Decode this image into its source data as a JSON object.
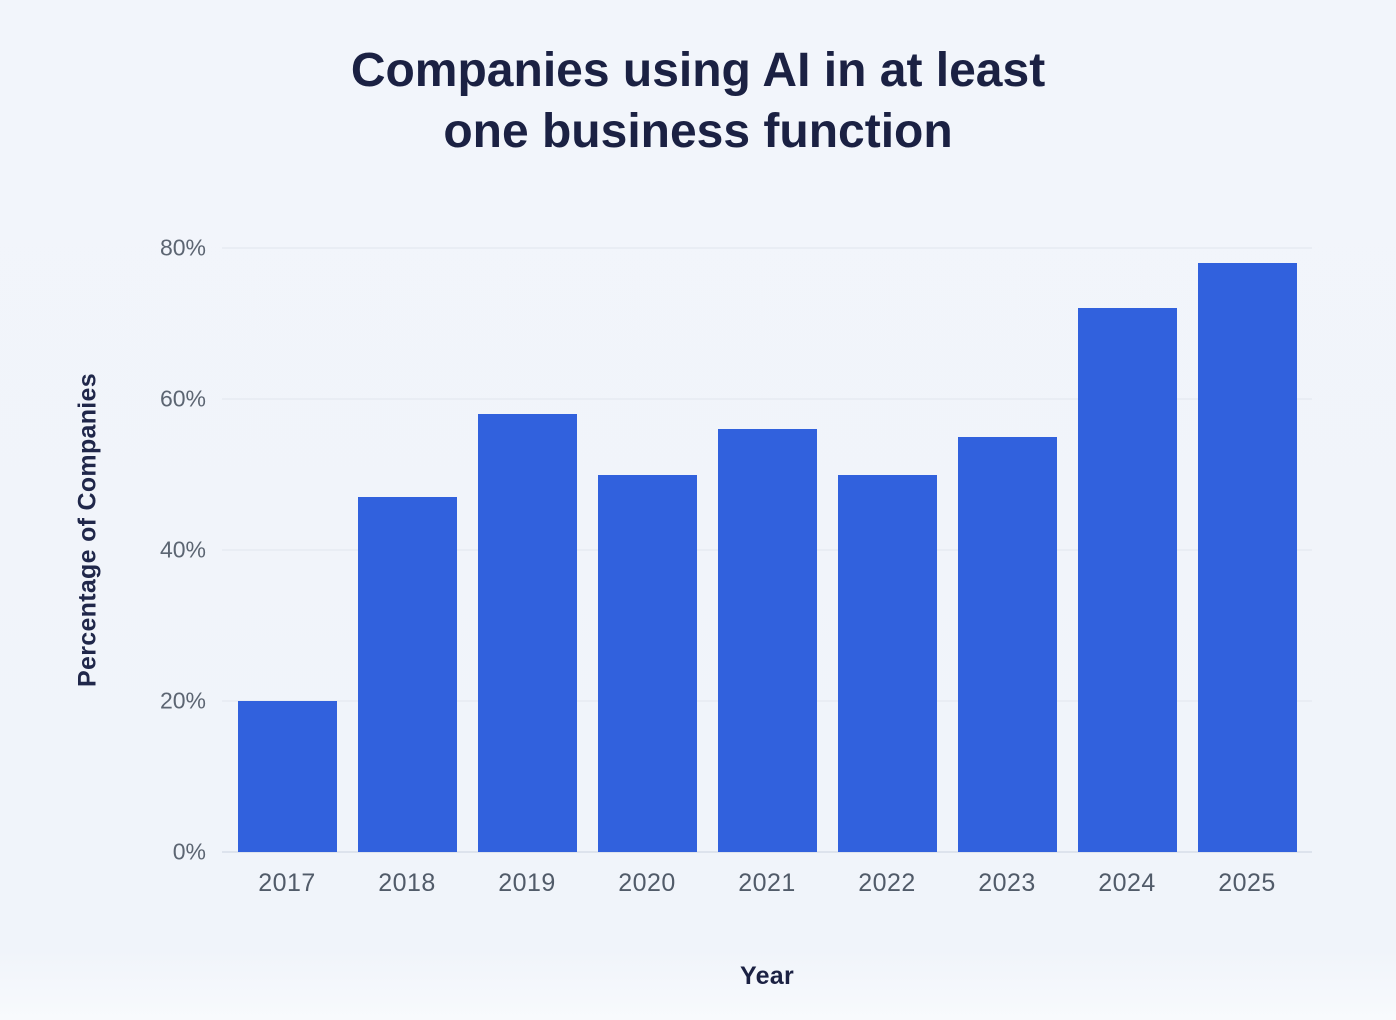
{
  "title": {
    "line1": "Companies using AI in at least",
    "line2": "one business function"
  },
  "chart_data": {
    "type": "bar",
    "title": "Companies using AI in at least one business function",
    "categories": [
      "2017",
      "2018",
      "2019",
      "2020",
      "2021",
      "2022",
      "2023",
      "2024",
      "2025"
    ],
    "values": [
      20,
      47,
      58,
      50,
      56,
      50,
      55,
      72,
      78
    ],
    "xlabel": "Year",
    "ylabel": "Percentage of Companies",
    "ylim": [
      0,
      80
    ],
    "y_ticks": [
      0,
      20,
      40,
      60,
      80
    ],
    "y_tick_labels": [
      "0%",
      "20%",
      "40%",
      "60%",
      "80%"
    ],
    "grid": true,
    "legend": false,
    "bar_color": "#3161DD"
  },
  "colors": {
    "background": "#F2F5FB",
    "bar": "#3161DD",
    "title_text": "#1B2143",
    "axis_title_text": "#20274A",
    "y_tick_text": "#5C6572",
    "x_tick_text": "#515B69",
    "gridline": "#E9EDF4",
    "baseline": "#DDE3ED"
  }
}
